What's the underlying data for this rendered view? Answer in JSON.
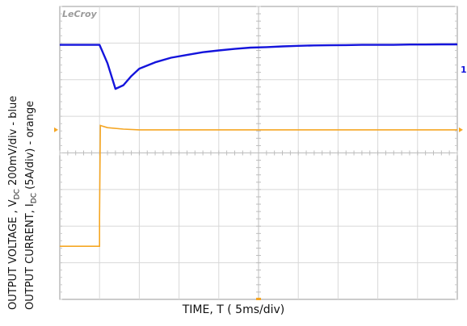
{
  "brand": "LeCroy",
  "labels": {
    "y_voltage_prefix": "OUTPUT VOLTAGE , V",
    "y_voltage_sub": "DC",
    "y_voltage_suffix": "  200mV/div - blue",
    "y_current_prefix": "OUTPUT CURRENT, I",
    "y_current_sub": "DC",
    "y_current_suffix": "  (5A/div) - orange",
    "x": "TIME,  T ( 5ms/div)"
  },
  "channel_markers": {
    "ch1": "1"
  },
  "colors": {
    "voltage": "#1414dc",
    "current": "#f5a623",
    "grid": "#d8d8d8",
    "frame": "#999999",
    "background": "#ffffff"
  },
  "chart_data": {
    "type": "line",
    "xlabel": "TIME,  T ( 5ms/div)",
    "x_unit_per_div": "5ms",
    "x_divisions": 10,
    "y_divisions": 8,
    "grid": true,
    "series": [
      {
        "name": "blue",
        "unit": "mV",
        "scale_per_div": 200,
        "x": [
          0,
          2,
          4,
          5,
          5.2,
          6,
          7,
          8,
          9,
          10,
          12,
          14,
          16,
          18,
          20,
          22,
          24,
          26,
          28,
          30,
          32,
          34,
          36,
          38,
          40,
          42,
          44,
          46,
          48,
          50
        ],
        "y": [
          0,
          0,
          0,
          0,
          -20,
          -100,
          -240,
          -220,
          -170,
          -130,
          -95,
          -70,
          -55,
          -40,
          -30,
          -22,
          -15,
          -12,
          -8,
          -5,
          -3,
          -2,
          -1,
          0,
          0,
          0,
          2,
          2,
          3,
          3
        ]
      },
      {
        "name": "orange",
        "unit": "A",
        "scale_per_div": 5,
        "x": [
          0,
          5,
          5,
          5.1,
          6,
          8,
          10,
          15,
          20,
          25,
          30,
          35,
          40,
          45,
          50
        ],
        "y": [
          0,
          0,
          4,
          16.5,
          16.2,
          16.0,
          15.9,
          15.9,
          15.9,
          15.9,
          15.9,
          15.9,
          15.9,
          15.9,
          15.9
        ]
      }
    ]
  }
}
